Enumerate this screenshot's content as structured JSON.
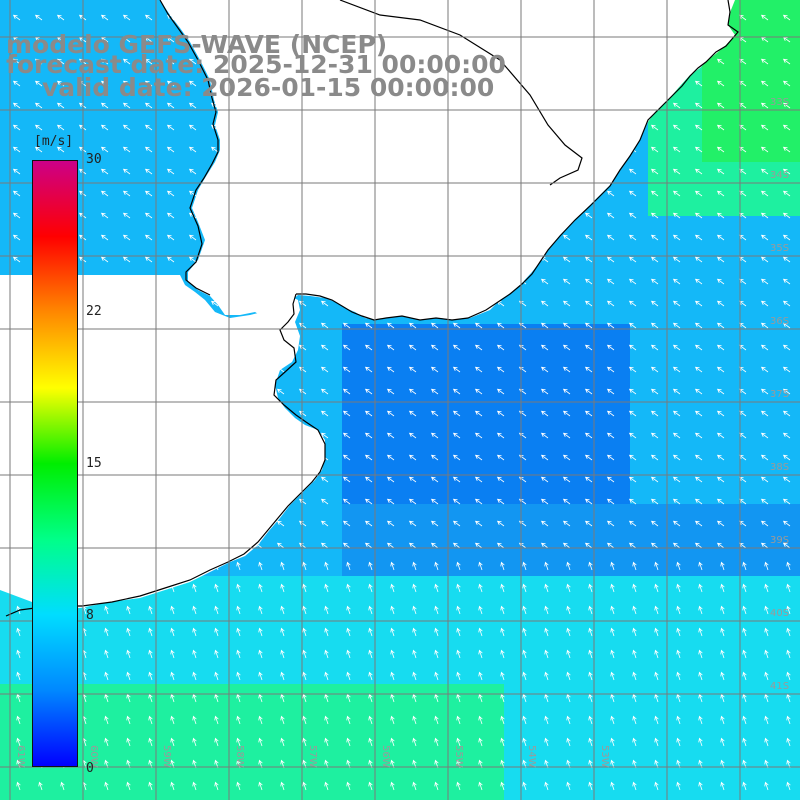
{
  "title": {
    "model": "modelo GEFS-WAVE (NCEP)",
    "forecast": "forecast date: 2025-12-31 00:00:00",
    "valid": "valid date: 2026-01-15 00:00:00"
  },
  "colorbar": {
    "unit": "[m/s]",
    "ticks": [
      "30",
      "22",
      "15",
      "8",
      "0"
    ],
    "range": [
      0,
      30
    ],
    "colors": [
      "#0000ff",
      "#0088ff",
      "#00ddff",
      "#00ff88",
      "#00ee00",
      "#ffff00",
      "#ff8800",
      "#ff0000",
      "#cc0088"
    ]
  },
  "map": {
    "lat_labels": [
      "33S",
      "34S",
      "35S",
      "36S",
      "37S",
      "38S",
      "39S",
      "40S",
      "41S"
    ],
    "lon_labels": [
      "61W",
      "60W",
      "59W",
      "58W",
      "57W",
      "56W",
      "55W",
      "54W",
      "53W"
    ],
    "land_color": "#ffffff",
    "grid_color": "#7a7a7a",
    "coast_color": "#000000",
    "arrow_color": "#ffffff",
    "ocean_colors": {
      "dark_blue": "#0a7ff2",
      "blue": "#1296f2",
      "light_blue": "#14b8f8",
      "cyan": "#17dcf0",
      "green": "#1ef0a0",
      "bright_green": "#22f068"
    }
  }
}
